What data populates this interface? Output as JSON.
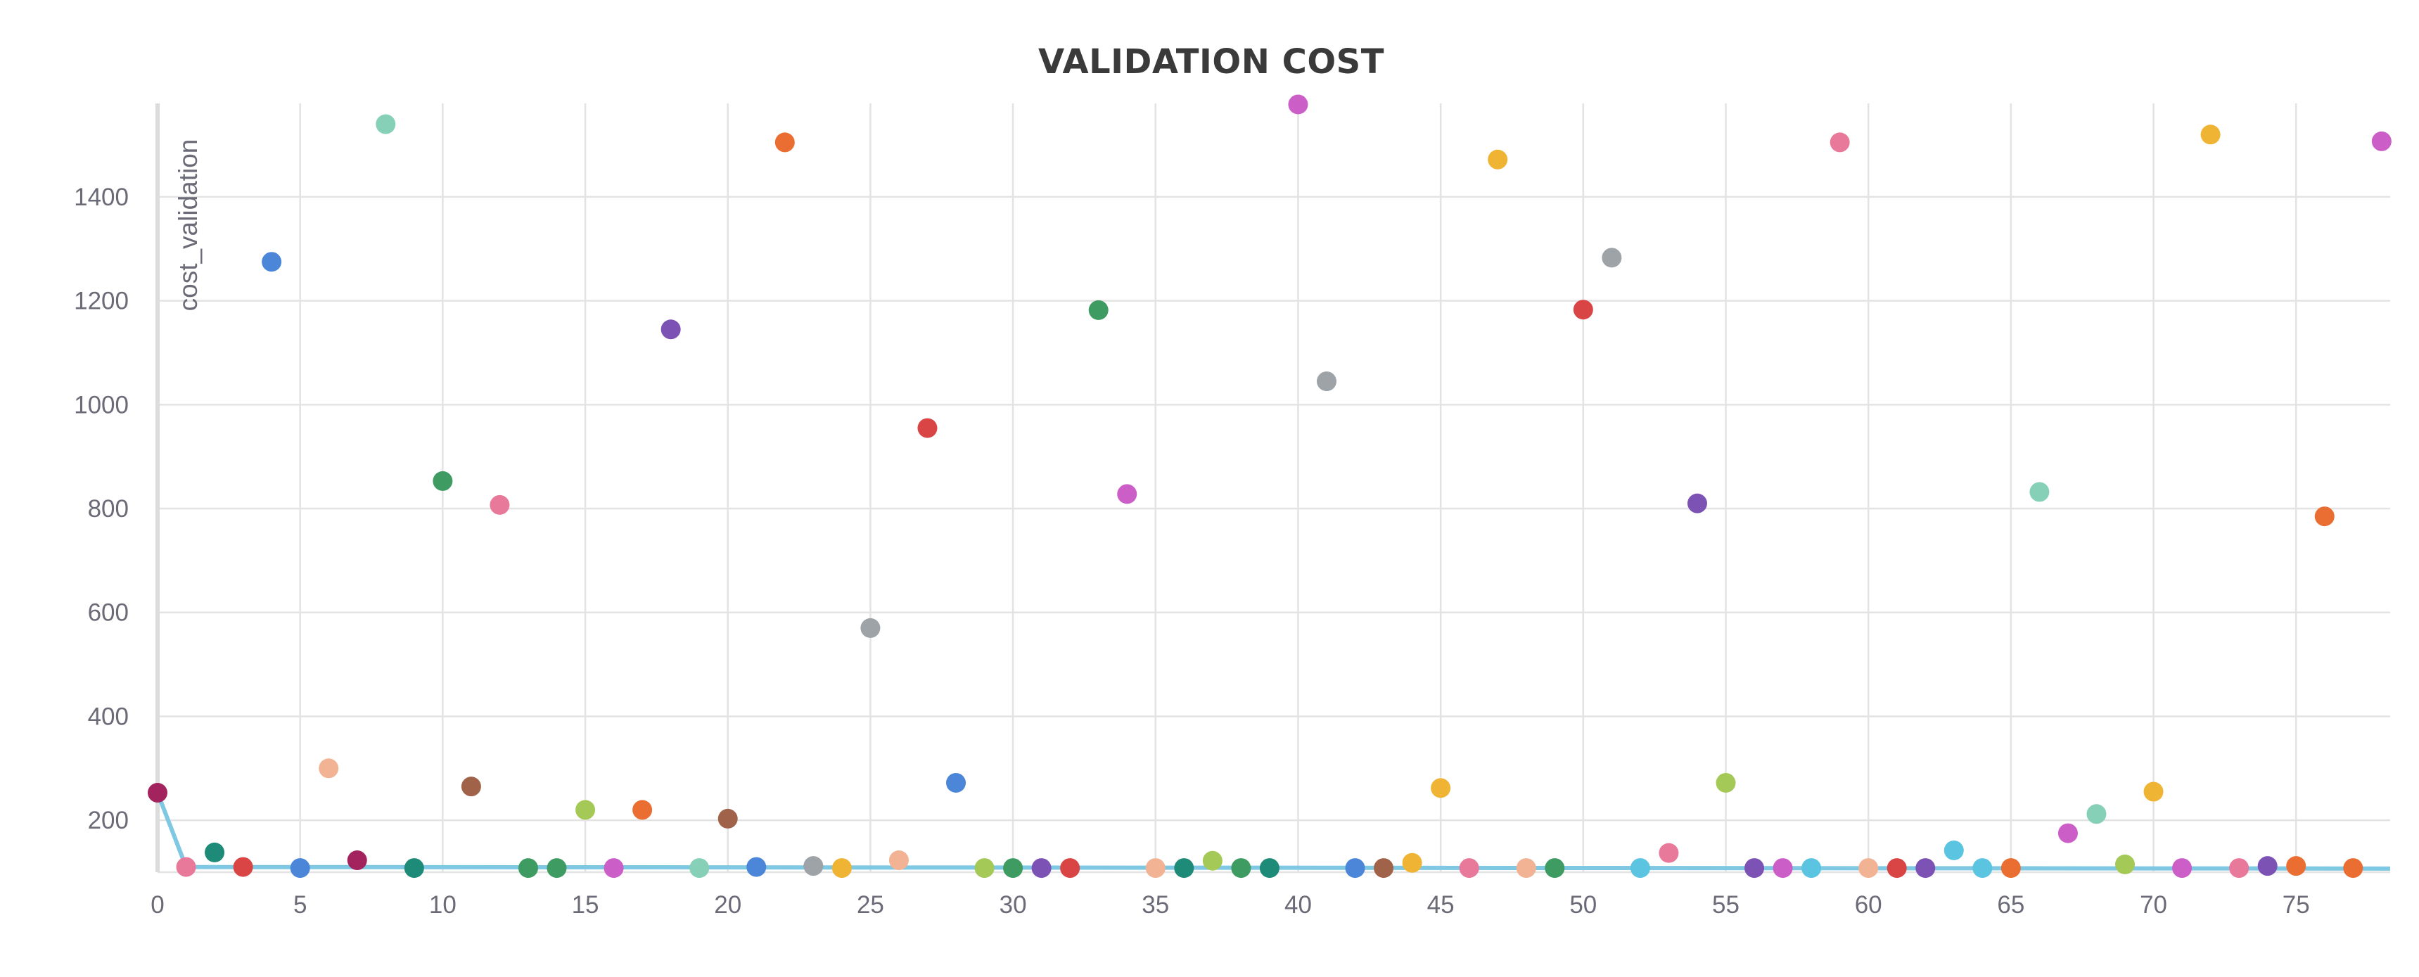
{
  "chart_data": {
    "type": "scatter",
    "title": "VALIDATION COST",
    "ylabel": "cost_validation",
    "xlabel": "",
    "xlim": [
      0,
      78.3
    ],
    "ylim": [
      100,
      1580
    ],
    "x_ticks": [
      "0",
      "5",
      "10",
      "15",
      "20",
      "25",
      "30",
      "35",
      "40",
      "45",
      "50",
      "55",
      "60",
      "65",
      "70",
      "75"
    ],
    "y_ticks": [
      "200",
      "400",
      "600",
      "800",
      "1000",
      "1200",
      "1400"
    ],
    "grid": true,
    "line_series": {
      "color": "#7ec8e3",
      "x": [
        0,
        1,
        78.3
      ],
      "y": [
        253,
        110,
        107
      ]
    },
    "points": [
      {
        "x": 0,
        "y": 253,
        "color": "#a3235e"
      },
      {
        "x": 1,
        "y": 110,
        "color": "#e8799b"
      },
      {
        "x": 2,
        "y": 138,
        "color": "#1e8a78"
      },
      {
        "x": 3,
        "y": 110,
        "color": "#d94444"
      },
      {
        "x": 4,
        "y": 1275,
        "color": "#4b86d8"
      },
      {
        "x": 5,
        "y": 108,
        "color": "#4b86d8"
      },
      {
        "x": 6,
        "y": 300,
        "color": "#f2b395"
      },
      {
        "x": 7,
        "y": 123,
        "color": "#a3235e"
      },
      {
        "x": 8,
        "y": 1540,
        "color": "#87d0b8"
      },
      {
        "x": 9,
        "y": 108,
        "color": "#1e8a78"
      },
      {
        "x": 10,
        "y": 853,
        "color": "#3e9c62"
      },
      {
        "x": 11,
        "y": 265,
        "color": "#a0634a"
      },
      {
        "x": 12,
        "y": 807,
        "color": "#e8799b"
      },
      {
        "x": 13,
        "y": 108,
        "color": "#3e9c62"
      },
      {
        "x": 14,
        "y": 108,
        "color": "#3e9c62"
      },
      {
        "x": 15,
        "y": 220,
        "color": "#a4c956"
      },
      {
        "x": 16,
        "y": 108,
        "color": "#cc5ec8"
      },
      {
        "x": 17,
        "y": 220,
        "color": "#ea6e32"
      },
      {
        "x": 18,
        "y": 1145,
        "color": "#7c52b5"
      },
      {
        "x": 19,
        "y": 108,
        "color": "#87d0b8"
      },
      {
        "x": 20,
        "y": 203,
        "color": "#a0634a"
      },
      {
        "x": 21,
        "y": 110,
        "color": "#4b86d8"
      },
      {
        "x": 22,
        "y": 1505,
        "color": "#ea6e32"
      },
      {
        "x": 23,
        "y": 112,
        "color": "#9ea3a8"
      },
      {
        "x": 24,
        "y": 108,
        "color": "#f0b434"
      },
      {
        "x": 25,
        "y": 570,
        "color": "#9ea3a8"
      },
      {
        "x": 26,
        "y": 123,
        "color": "#f2b395"
      },
      {
        "x": 27,
        "y": 955,
        "color": "#d94444"
      },
      {
        "x": 28,
        "y": 272,
        "color": "#4b86d8"
      },
      {
        "x": 29,
        "y": 108,
        "color": "#a4c956"
      },
      {
        "x": 30,
        "y": 108,
        "color": "#3e9c62"
      },
      {
        "x": 31,
        "y": 108,
        "color": "#7c52b5"
      },
      {
        "x": 32,
        "y": 108,
        "color": "#d94444"
      },
      {
        "x": 33,
        "y": 1182,
        "color": "#3e9c62"
      },
      {
        "x": 34,
        "y": 828,
        "color": "#cc5ec8"
      },
      {
        "x": 35,
        "y": 108,
        "color": "#f2b395"
      },
      {
        "x": 36,
        "y": 108,
        "color": "#1e8a78"
      },
      {
        "x": 37,
        "y": 122,
        "color": "#a4c956"
      },
      {
        "x": 38,
        "y": 108,
        "color": "#3e9c62"
      },
      {
        "x": 39,
        "y": 108,
        "color": "#1e8a78"
      },
      {
        "x": 40,
        "y": 1578,
        "color": "#cc5ec8"
      },
      {
        "x": 41,
        "y": 1045,
        "color": "#9ea3a8"
      },
      {
        "x": 42,
        "y": 108,
        "color": "#4b86d8"
      },
      {
        "x": 43,
        "y": 108,
        "color": "#a0634a"
      },
      {
        "x": 44,
        "y": 118,
        "color": "#f0b434"
      },
      {
        "x": 45,
        "y": 262,
        "color": "#f0b434"
      },
      {
        "x": 46,
        "y": 108,
        "color": "#e8799b"
      },
      {
        "x": 47,
        "y": 1472,
        "color": "#f0b434"
      },
      {
        "x": 48,
        "y": 108,
        "color": "#f2b395"
      },
      {
        "x": 49,
        "y": 108,
        "color": "#3e9c62"
      },
      {
        "x": 50,
        "y": 1183,
        "color": "#d94444"
      },
      {
        "x": 51,
        "y": 1283,
        "color": "#9ea3a8"
      },
      {
        "x": 52,
        "y": 108,
        "color": "#5bc4e0"
      },
      {
        "x": 53,
        "y": 137,
        "color": "#e8799b"
      },
      {
        "x": 54,
        "y": 810,
        "color": "#7c52b5"
      },
      {
        "x": 55,
        "y": 272,
        "color": "#a4c956"
      },
      {
        "x": 56,
        "y": 108,
        "color": "#7c52b5"
      },
      {
        "x": 57,
        "y": 108,
        "color": "#cc5ec8"
      },
      {
        "x": 58,
        "y": 108,
        "color": "#5bc4e0"
      },
      {
        "x": 59,
        "y": 1505,
        "color": "#e8799b"
      },
      {
        "x": 60,
        "y": 108,
        "color": "#f2b395"
      },
      {
        "x": 61,
        "y": 108,
        "color": "#d94444"
      },
      {
        "x": 62,
        "y": 108,
        "color": "#7c52b5"
      },
      {
        "x": 63,
        "y": 142,
        "color": "#5bc4e0"
      },
      {
        "x": 64,
        "y": 108,
        "color": "#5bc4e0"
      },
      {
        "x": 65,
        "y": 108,
        "color": "#ea6e32"
      },
      {
        "x": 66,
        "y": 832,
        "color": "#87d0b8"
      },
      {
        "x": 67,
        "y": 175,
        "color": "#cc5ec8"
      },
      {
        "x": 68,
        "y": 212,
        "color": "#87d0b8"
      },
      {
        "x": 69,
        "y": 115,
        "color": "#a4c956"
      },
      {
        "x": 70,
        "y": 255,
        "color": "#f0b434"
      },
      {
        "x": 71,
        "y": 108,
        "color": "#cc5ec8"
      },
      {
        "x": 72,
        "y": 1520,
        "color": "#f0b434"
      },
      {
        "x": 73,
        "y": 108,
        "color": "#e8799b"
      },
      {
        "x": 74,
        "y": 112,
        "color": "#7c52b5"
      },
      {
        "x": 75,
        "y": 112,
        "color": "#ea6e32"
      },
      {
        "x": 76,
        "y": 785,
        "color": "#ea6e32"
      },
      {
        "x": 77,
        "y": 108,
        "color": "#ea6e32"
      },
      {
        "x": 78,
        "y": 1507,
        "color": "#cc5ec8"
      }
    ]
  }
}
